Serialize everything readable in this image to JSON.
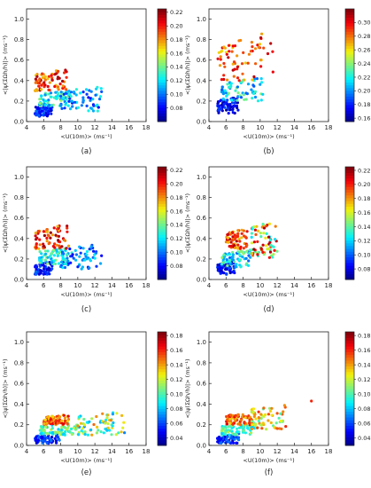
{
  "chart_data": [
    {
      "type": "scatter",
      "panel_label": "(a)",
      "xlabel": "<U(10m)> (ms⁻¹)",
      "ylabel": "<|ψ(ΣΩh/h)|> (ms⁻¹)",
      "xlim": [
        4,
        18
      ],
      "ylim": [
        0,
        1.1
      ],
      "xticks": [
        4,
        6,
        8,
        10,
        12,
        14,
        16,
        18
      ],
      "yticks": [
        0.0,
        0.2,
        0.4,
        0.6,
        0.8,
        1.0
      ],
      "colorbar": {
        "min": 0.06,
        "max": 0.225,
        "ticks": [
          0.08,
          0.1,
          0.12,
          0.14,
          0.16,
          0.18,
          0.2,
          0.22
        ]
      },
      "clusters": [
        {
          "x": [
            5,
            7
          ],
          "y": [
            0.05,
            0.18
          ],
          "c": [
            0.07,
            0.1
          ]
        },
        {
          "x": [
            5.5,
            9
          ],
          "y": [
            0.15,
            0.32
          ],
          "c": [
            0.1,
            0.15
          ]
        },
        {
          "x": [
            8,
            12.8
          ],
          "y": [
            0.1,
            0.35
          ],
          "c": [
            0.08,
            0.13
          ]
        },
        {
          "x": [
            5,
            9
          ],
          "y": [
            0.3,
            0.55
          ],
          "c": [
            0.17,
            0.22
          ]
        }
      ]
    },
    {
      "type": "scatter",
      "panel_label": "(b)",
      "xlabel": "<U(10m)> (ms⁻¹)",
      "ylabel": "<|ψ(ΣΩh/h)|> (ms⁻¹)",
      "xlim": [
        4,
        18
      ],
      "ylim": [
        0,
        1.1
      ],
      "xticks": [
        4,
        6,
        8,
        10,
        12,
        14,
        16,
        18
      ],
      "yticks": [
        0.0,
        0.2,
        0.4,
        0.6,
        0.8,
        1.0
      ],
      "colorbar": {
        "min": 0.155,
        "max": 0.32,
        "ticks": [
          0.16,
          0.18,
          0.2,
          0.22,
          0.24,
          0.26,
          0.28,
          0.3
        ]
      },
      "clusters": [
        {
          "x": [
            5,
            7.5
          ],
          "y": [
            0.08,
            0.25
          ],
          "c": [
            0.16,
            0.19
          ]
        },
        {
          "x": [
            5.5,
            10.5
          ],
          "y": [
            0.2,
            0.45
          ],
          "c": [
            0.19,
            0.24
          ]
        },
        {
          "x": [
            5,
            11.5
          ],
          "y": [
            0.4,
            0.9
          ],
          "c": [
            0.26,
            0.31
          ]
        }
      ]
    },
    {
      "type": "scatter",
      "panel_label": "(c)",
      "xlabel": "<U(10m)> (ms⁻¹)",
      "ylabel": "<|ψ(ΣΩh/h)|> (ms⁻¹)",
      "xlim": [
        4,
        18
      ],
      "ylim": [
        0,
        1.1
      ],
      "xticks": [
        4,
        6,
        8,
        10,
        12,
        14,
        16,
        18
      ],
      "yticks": [
        0.0,
        0.2,
        0.4,
        0.6,
        0.8,
        1.0
      ],
      "colorbar": {
        "min": 0.06,
        "max": 0.225,
        "ticks": [
          0.08,
          0.1,
          0.12,
          0.14,
          0.16,
          0.18,
          0.2,
          0.22
        ]
      },
      "clusters": [
        {
          "x": [
            5,
            7
          ],
          "y": [
            0.05,
            0.18
          ],
          "c": [
            0.07,
            0.1
          ]
        },
        {
          "x": [
            5.5,
            9
          ],
          "y": [
            0.15,
            0.32
          ],
          "c": [
            0.1,
            0.15
          ]
        },
        {
          "x": [
            8,
            12.8
          ],
          "y": [
            0.1,
            0.35
          ],
          "c": [
            0.08,
            0.13
          ]
        },
        {
          "x": [
            5,
            9
          ],
          "y": [
            0.3,
            0.55
          ],
          "c": [
            0.17,
            0.22
          ]
        }
      ]
    },
    {
      "type": "scatter",
      "panel_label": "(d)",
      "xlabel": "<U(10m)> (ms⁻¹)",
      "ylabel": "<|ψ(ΣΩh/h)|> (ms⁻¹)",
      "xlim": [
        4,
        18
      ],
      "ylim": [
        0,
        1.1
      ],
      "xticks": [
        4,
        6,
        8,
        10,
        12,
        14,
        16,
        18
      ],
      "yticks": [
        0.0,
        0.2,
        0.4,
        0.6,
        0.8,
        1.0
      ],
      "colorbar": {
        "min": 0.065,
        "max": 0.225,
        "ticks": [
          0.08,
          0.1,
          0.12,
          0.14,
          0.16,
          0.18,
          0.2,
          0.22
        ]
      },
      "clusters": [
        {
          "x": [
            5,
            7
          ],
          "y": [
            0.05,
            0.18
          ],
          "c": [
            0.07,
            0.1
          ]
        },
        {
          "x": [
            5.5,
            9
          ],
          "y": [
            0.12,
            0.3
          ],
          "c": [
            0.1,
            0.15
          ]
        },
        {
          "x": [
            6,
            8.5
          ],
          "y": [
            0.3,
            0.5
          ],
          "c": [
            0.17,
            0.22
          ]
        },
        {
          "x": [
            9,
            12
          ],
          "y": [
            0.2,
            0.58
          ],
          "c": [
            0.12,
            0.22
          ]
        }
      ]
    },
    {
      "type": "scatter",
      "panel_label": "(e)",
      "xlabel": "<U(10m)> (ms⁻¹)",
      "ylabel": "<|ψ(ΣΩh/h)|> (ms⁻¹)",
      "xlim": [
        4,
        18
      ],
      "ylim": [
        0,
        1.1
      ],
      "xticks": [
        4,
        6,
        8,
        10,
        12,
        14,
        16,
        18
      ],
      "yticks": [
        0.0,
        0.2,
        0.4,
        0.6,
        0.8,
        1.0
      ],
      "colorbar": {
        "min": 0.03,
        "max": 0.185,
        "ticks": [
          0.04,
          0.06,
          0.08,
          0.1,
          0.12,
          0.14,
          0.16,
          0.18
        ]
      },
      "clusters": [
        {
          "x": [
            5,
            8
          ],
          "y": [
            0.02,
            0.12
          ],
          "c": [
            0.04,
            0.07
          ]
        },
        {
          "x": [
            5.5,
            10
          ],
          "y": [
            0.1,
            0.22
          ],
          "c": [
            0.08,
            0.12
          ]
        },
        {
          "x": [
            6,
            9
          ],
          "y": [
            0.2,
            0.3
          ],
          "c": [
            0.13,
            0.17
          ]
        },
        {
          "x": [
            10,
            15.5
          ],
          "y": [
            0.1,
            0.33
          ],
          "c": [
            0.07,
            0.15
          ]
        }
      ]
    },
    {
      "type": "scatter",
      "panel_label": "(f)",
      "xlabel": "<U(10m)> (ms⁻¹)",
      "ylabel": "<|ψ(ΣΩh/h)|> (ms⁻¹)",
      "xlim": [
        4,
        18
      ],
      "ylim": [
        0,
        1.1
      ],
      "xticks": [
        4,
        6,
        8,
        10,
        12,
        14,
        16,
        18
      ],
      "yticks": [
        0.0,
        0.2,
        0.4,
        0.6,
        0.8,
        1.0
      ],
      "colorbar": {
        "min": 0.03,
        "max": 0.185,
        "ticks": [
          0.04,
          0.06,
          0.08,
          0.1,
          0.12,
          0.14,
          0.16,
          0.18
        ]
      },
      "clusters": [
        {
          "x": [
            5,
            7.5
          ],
          "y": [
            0.02,
            0.12
          ],
          "c": [
            0.04,
            0.07
          ]
        },
        {
          "x": [
            5.5,
            9.5
          ],
          "y": [
            0.1,
            0.22
          ],
          "c": [
            0.08,
            0.12
          ]
        },
        {
          "x": [
            6,
            9
          ],
          "y": [
            0.2,
            0.32
          ],
          "c": [
            0.13,
            0.17
          ]
        },
        {
          "x": [
            9,
            13
          ],
          "y": [
            0.15,
            0.4
          ],
          "c": [
            0.1,
            0.16
          ]
        },
        {
          "x": [
            16,
            16
          ],
          "y": [
            0.43,
            0.43
          ],
          "c": [
            0.16,
            0.16
          ]
        }
      ]
    }
  ]
}
